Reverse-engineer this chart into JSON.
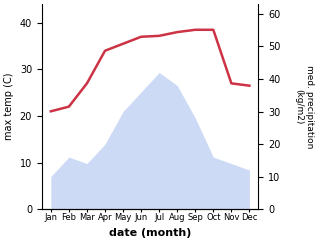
{
  "months": [
    "Jan",
    "Feb",
    "Mar",
    "Apr",
    "May",
    "Jun",
    "Jul",
    "Aug",
    "Sep",
    "Oct",
    "Nov",
    "Dec"
  ],
  "month_positions": [
    1,
    2,
    3,
    4,
    5,
    6,
    7,
    8,
    9,
    10,
    11,
    12
  ],
  "precipitation": [
    10,
    16,
    14,
    20,
    30,
    36,
    42,
    38,
    28,
    16,
    14,
    12
  ],
  "temperature": [
    21,
    22,
    27,
    34,
    35.5,
    37,
    37.2,
    38,
    38.5,
    38.5,
    27,
    26.5
  ],
  "xlabel": "date (month)",
  "ylabel_left": "max temp (C)",
  "ylabel_right": "med. precipitation\n(kg/m2)",
  "ylim_left": [
    0,
    44
  ],
  "ylim_right": [
    0,
    63
  ],
  "yticks_left": [
    0,
    10,
    20,
    30,
    40
  ],
  "yticks_right": [
    0,
    10,
    20,
    30,
    40,
    50,
    60
  ],
  "fill_color": "#c5d4f5",
  "fill_alpha": 0.85,
  "line_color": "#cc3344",
  "line_width": 1.8,
  "bg_color": "#ffffff"
}
